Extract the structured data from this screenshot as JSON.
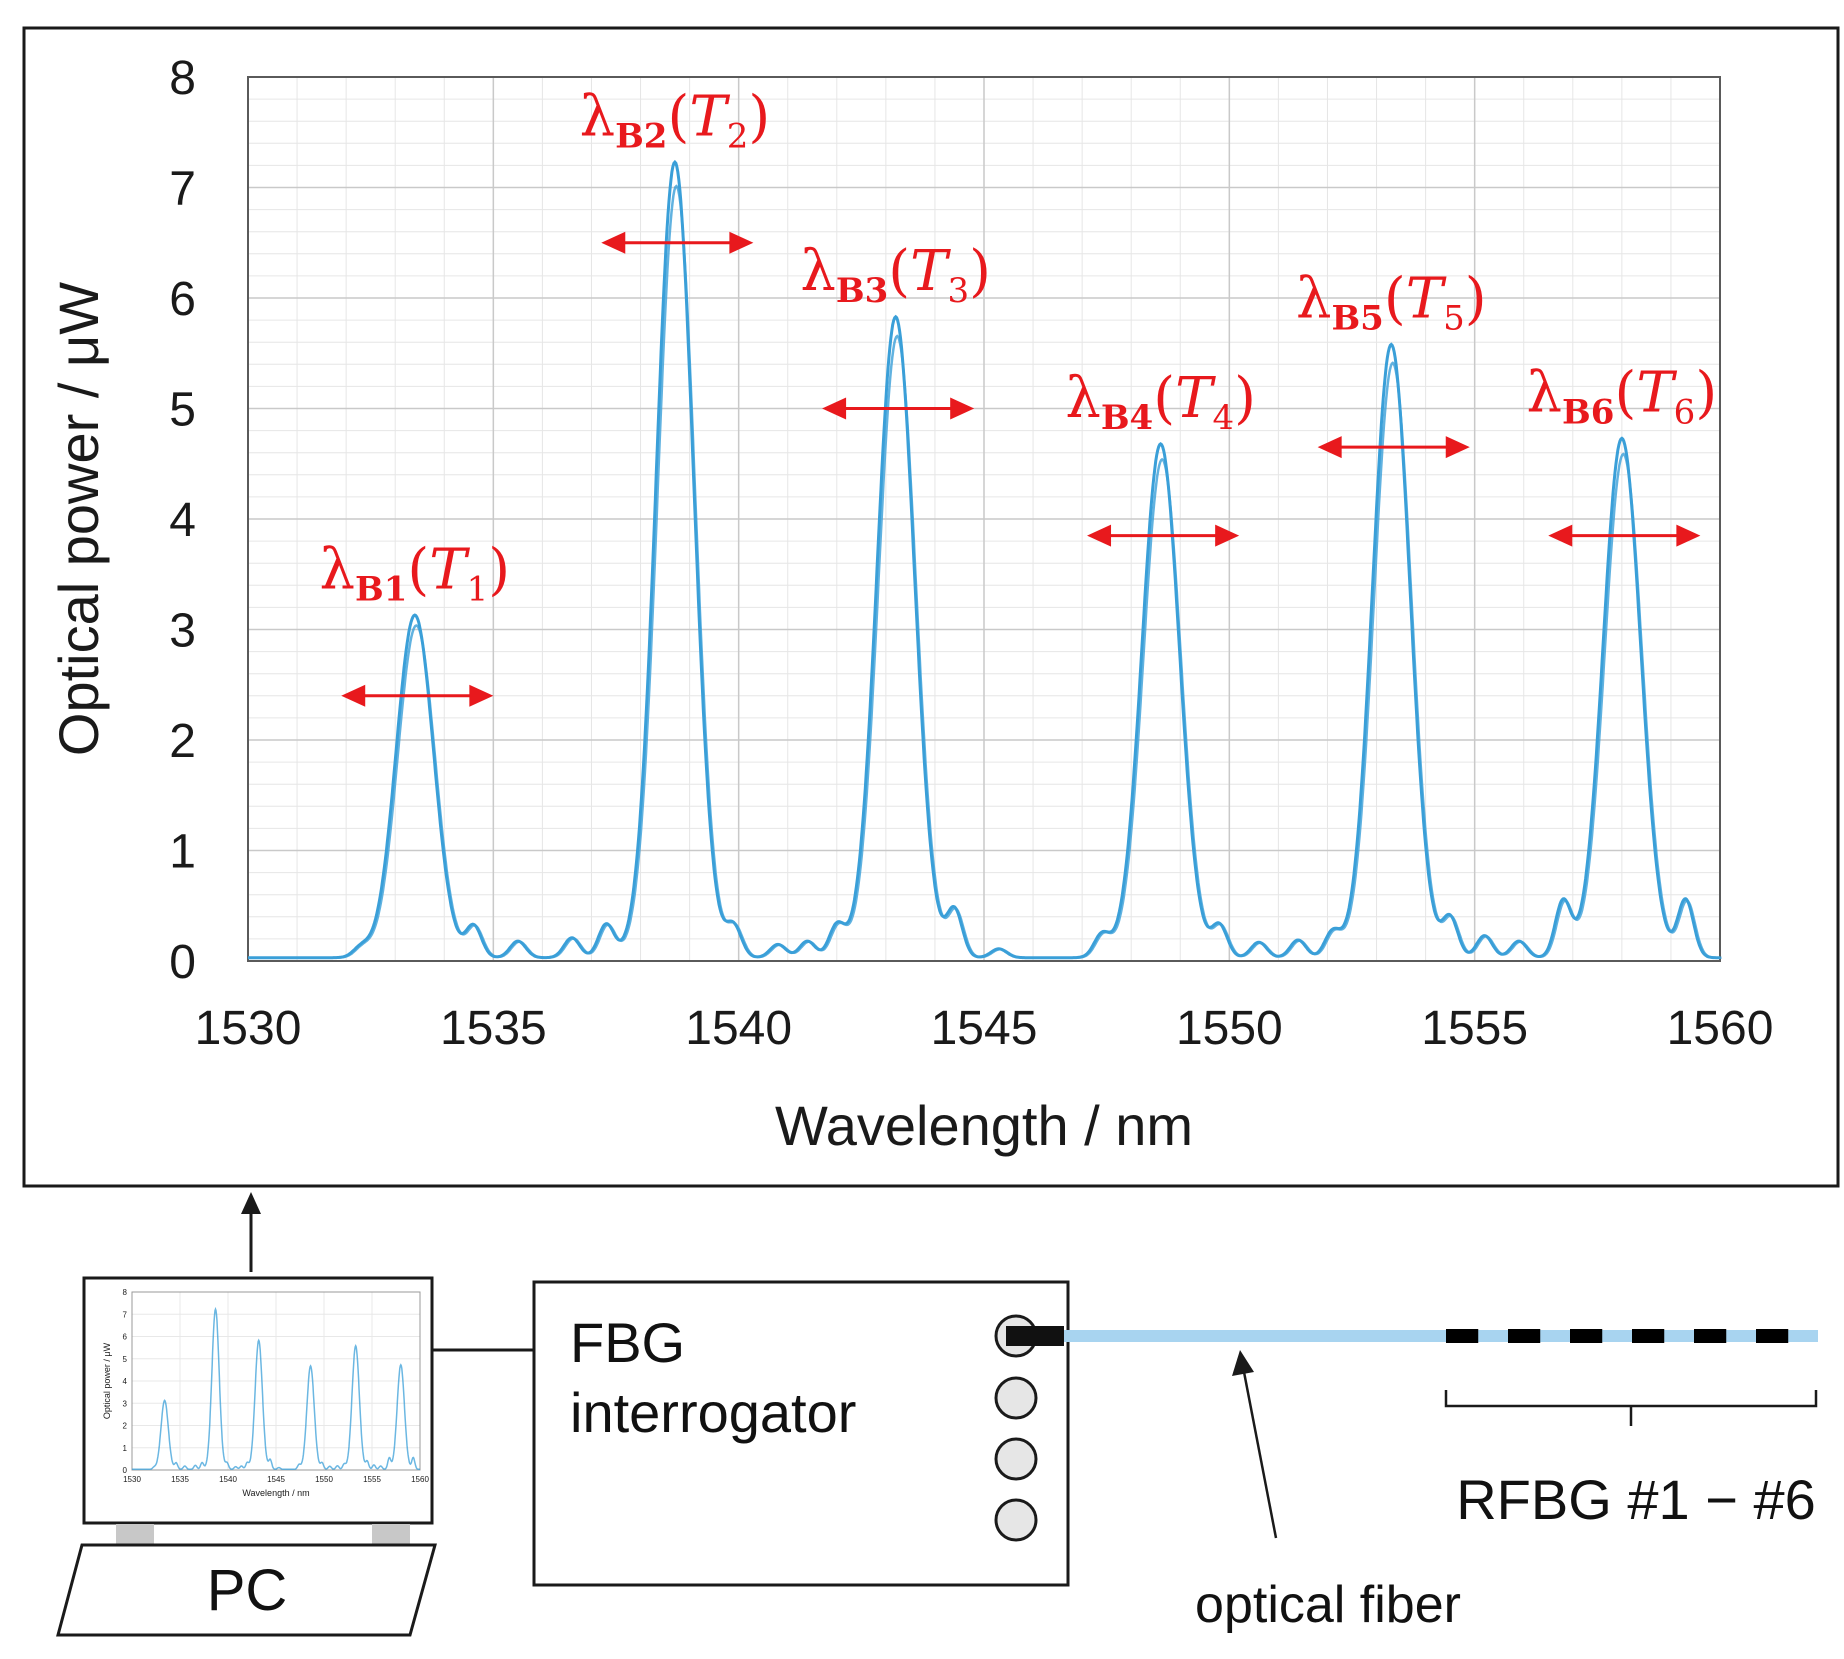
{
  "chart_data": {
    "type": "line",
    "xlabel": "Wavelength / nm",
    "ylabel": "Optical power / μW",
    "xlim": [
      1530,
      1560
    ],
    "ylim": [
      0,
      8
    ],
    "x_ticks": [
      "1530",
      "1535",
      "1540",
      "1545",
      "1550",
      "1555",
      "1560"
    ],
    "y_ticks": [
      "0",
      "1",
      "2",
      "3",
      "4",
      "5",
      "6",
      "7",
      "8"
    ],
    "x_tick_values": [
      1530,
      1535,
      1540,
      1545,
      1550,
      1555,
      1560
    ],
    "y_tick_values": [
      0,
      1,
      2,
      3,
      4,
      5,
      6,
      7,
      8
    ],
    "grid": true,
    "minor_grid": true,
    "series_color": "#3a9fd8",
    "arrow_color": "#e8191d",
    "peaks": [
      {
        "center": 1533.4,
        "height": 3.1,
        "label_main": "λ",
        "label_sub": "B1",
        "label_T": "T",
        "label_T_sub": "1",
        "arrow_from": 1531.9,
        "arrow_to": 1535.0,
        "arrow_y": 2.4
      },
      {
        "center": 1538.7,
        "height": 7.2,
        "label_main": "λ",
        "label_sub": "B2",
        "label_T": "T",
        "label_T_sub": "2",
        "arrow_from": 1537.2,
        "arrow_to": 1540.3,
        "arrow_y": 6.5
      },
      {
        "center": 1543.2,
        "height": 5.8,
        "label_main": "λ",
        "label_sub": "B3",
        "label_T": "T",
        "label_T_sub": "3",
        "arrow_from": 1541.7,
        "arrow_to": 1544.8,
        "arrow_y": 5.0
      },
      {
        "center": 1548.6,
        "height": 4.65,
        "label_main": "λ",
        "label_sub": "B4",
        "label_T": "T",
        "label_T_sub": "4",
        "arrow_from": 1547.1,
        "arrow_to": 1550.2,
        "arrow_y": 3.85
      },
      {
        "center": 1553.3,
        "height": 5.55,
        "label_main": "λ",
        "label_sub": "B5",
        "label_T": "T",
        "label_T_sub": "5",
        "arrow_from": 1551.8,
        "arrow_to": 1554.9,
        "arrow_y": 4.65
      },
      {
        "center": 1558.0,
        "height": 4.7,
        "label_main": "λ",
        "label_sub": "B6",
        "label_T": "T",
        "label_T_sub": "6",
        "arrow_from": 1556.5,
        "arrow_to": 1559.6,
        "arrow_y": 3.85
      }
    ],
    "side_lobes": [
      {
        "center": 1532.3,
        "height": 0.08
      },
      {
        "center": 1534.6,
        "height": 0.28
      },
      {
        "center": 1535.5,
        "height": 0.15
      },
      {
        "center": 1536.6,
        "height": 0.18
      },
      {
        "center": 1537.3,
        "height": 0.3
      },
      {
        "center": 1539.9,
        "height": 0.27
      },
      {
        "center": 1540.8,
        "height": 0.12
      },
      {
        "center": 1541.4,
        "height": 0.15
      },
      {
        "center": 1542.0,
        "height": 0.28
      },
      {
        "center": 1544.4,
        "height": 0.42
      },
      {
        "center": 1545.3,
        "height": 0.08
      },
      {
        "center": 1547.4,
        "height": 0.2
      },
      {
        "center": 1549.8,
        "height": 0.28
      },
      {
        "center": 1550.6,
        "height": 0.14
      },
      {
        "center": 1551.4,
        "height": 0.16
      },
      {
        "center": 1552.1,
        "height": 0.22
      },
      {
        "center": 1554.5,
        "height": 0.35
      },
      {
        "center": 1555.2,
        "height": 0.2
      },
      {
        "center": 1555.9,
        "height": 0.15
      },
      {
        "center": 1556.8,
        "height": 0.5
      },
      {
        "center": 1559.3,
        "height": 0.52
      }
    ]
  },
  "diagram": {
    "pc_label": "PC",
    "interrogator_line1": "FBG",
    "interrogator_line2": "interrogator",
    "fiber_label": "optical fiber",
    "rfbg_label": "RFBG #1 − #6",
    "fiber_color": "#a8d4f0",
    "grating_color": "#000000",
    "port_color": "#e6e6e6"
  }
}
